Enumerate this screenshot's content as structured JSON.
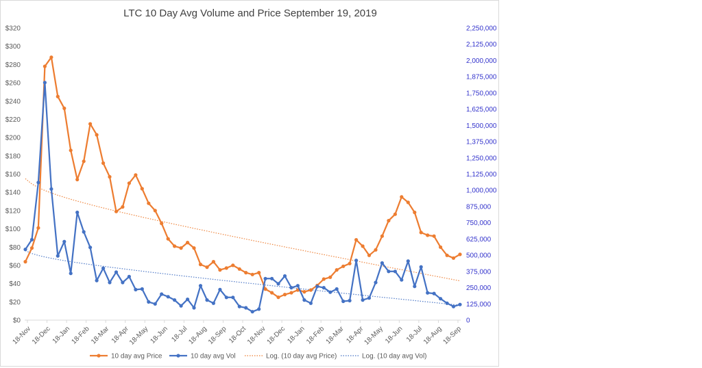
{
  "chart_data": {
    "type": "line",
    "title": "LTC 10 Day Avg Volume and Price September 19, 2019",
    "x_tick_labels": [
      "18-Nov",
      "18-Dec",
      "18-Jan",
      "18-Feb",
      "18-Mar",
      "18-Apr",
      "18-May",
      "18-Jun",
      "18-Jul",
      "18-Aug",
      "18-Sep",
      "18-Oct",
      "18-Nov",
      "18-Dec",
      "18-Jan",
      "18-Feb",
      "18-Mar",
      "18-Apr",
      "18-May",
      "18-Jun",
      "18-Jul",
      "18-Aug",
      "18-Sep"
    ],
    "y_left": {
      "ylim": [
        0,
        320
      ],
      "ticks": [
        0,
        20,
        40,
        60,
        80,
        100,
        120,
        140,
        160,
        180,
        200,
        220,
        240,
        260,
        280,
        300,
        320
      ],
      "tick_labels": [
        "$0",
        "$20",
        "$40",
        "$60",
        "$80",
        "$100",
        "$120",
        "$140",
        "$160",
        "$180",
        "$200",
        "$220",
        "$240",
        "$260",
        "$280",
        "$300",
        "$320"
      ]
    },
    "y_right": {
      "ylim": [
        0,
        2250000
      ],
      "ticks": [
        0,
        125000,
        250000,
        375000,
        500000,
        625000,
        750000,
        875000,
        1000000,
        1125000,
        1250000,
        1375000,
        1500000,
        1625000,
        1750000,
        1875000,
        2000000,
        2125000,
        2250000
      ],
      "tick_labels": [
        "0",
        "125,000",
        "250,000",
        "375,000",
        "500,000",
        "625,000",
        "750,000",
        "875,000",
        "1,000,000",
        "1,125,000",
        "1,250,000",
        "1,375,000",
        "1,500,000",
        "1,625,000",
        "1,750,000",
        "1,875,000",
        "2,000,000",
        "2,125,000",
        "2,250,000"
      ]
    },
    "series": [
      {
        "name": "10 day avg Price",
        "axis": "left",
        "color": "#ed7d31",
        "values": [
          64,
          79,
          101,
          278,
          288,
          245,
          232,
          186,
          154,
          174,
          215,
          203,
          172,
          157,
          119,
          124,
          150,
          159,
          144,
          128,
          120,
          106,
          89,
          81,
          79,
          85,
          79,
          61,
          58,
          64,
          55,
          57,
          60,
          56,
          52,
          50,
          52,
          34,
          30,
          25,
          28,
          30,
          33,
          31,
          33,
          38,
          45,
          47,
          55,
          59,
          62,
          88,
          81,
          71,
          77,
          92,
          109,
          116,
          135,
          129,
          118,
          96,
          93,
          92,
          80,
          71,
          68,
          72
        ]
      },
      {
        "name": "10 day avg Vol",
        "axis": "right",
        "color": "#4472c4",
        "values": [
          545000,
          620000,
          1060000,
          1830000,
          1010000,
          495000,
          605000,
          360000,
          830000,
          680000,
          560000,
          305000,
          400000,
          290000,
          370000,
          290000,
          335000,
          235000,
          240000,
          140000,
          125000,
          200000,
          180000,
          155000,
          110000,
          160000,
          95000,
          265000,
          155000,
          130000,
          235000,
          175000,
          175000,
          105000,
          95000,
          65000,
          85000,
          320000,
          320000,
          280000,
          340000,
          250000,
          265000,
          155000,
          130000,
          260000,
          250000,
          215000,
          240000,
          145000,
          150000,
          460000,
          155000,
          170000,
          290000,
          440000,
          375000,
          375000,
          310000,
          455000,
          260000,
          410000,
          210000,
          205000,
          165000,
          130000,
          105000,
          120000
        ]
      },
      {
        "name": "Log. (10 day avg Price)",
        "axis": "left",
        "color": "#ed7d31",
        "style": "dotted",
        "trend": "logarithmic",
        "values": [
          155,
          43
        ]
      },
      {
        "name": "Log. (10 day avg Vol)",
        "axis": "right",
        "color": "#4472c4",
        "style": "dotted",
        "trend": "logarithmic",
        "values": [
          535000,
          115000
        ]
      }
    ],
    "grid": false,
    "legend_placement": "bottom"
  }
}
